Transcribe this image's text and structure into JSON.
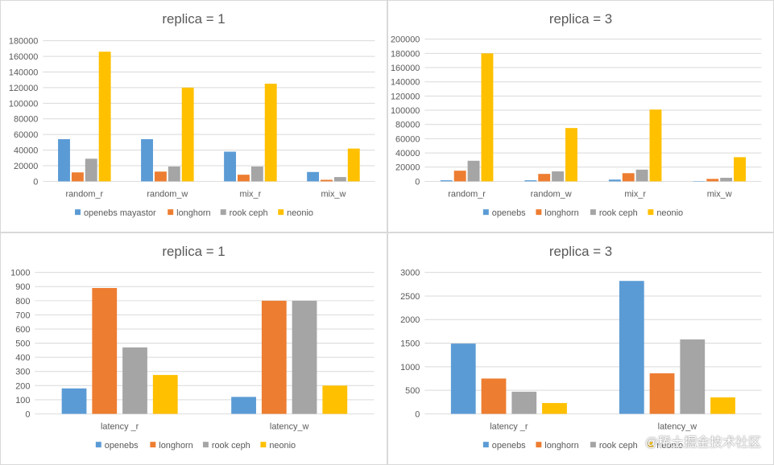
{
  "watermark": "@稀土掘金技术社区",
  "colors": {
    "openebs": "#5b9bd5",
    "longhorn": "#ed7d31",
    "rook_ceph": "#a5a5a5",
    "neonio": "#ffc000"
  },
  "chart_data": [
    {
      "type": "bar",
      "title": "replica = 1",
      "categories": [
        "random_r",
        "random_w",
        "mix_r",
        "mix_w"
      ],
      "ylim": [
        0,
        180000
      ],
      "yticks": [
        0,
        20000,
        40000,
        60000,
        80000,
        100000,
        120000,
        140000,
        160000,
        180000
      ],
      "grid": true,
      "legend_position": "bottom",
      "series": [
        {
          "name": "openebs mayastor",
          "color": "#5b9bd5",
          "values": [
            54000,
            54000,
            38000,
            12000
          ]
        },
        {
          "name": "longhorn",
          "color": "#ed7d31",
          "values": [
            11500,
            12500,
            8500,
            2000
          ]
        },
        {
          "name": "rook ceph",
          "color": "#a5a5a5",
          "values": [
            29000,
            19000,
            19000,
            5500
          ]
        },
        {
          "name": "neonio",
          "color": "#ffc000",
          "values": [
            166000,
            120000,
            125000,
            42000
          ]
        }
      ]
    },
    {
      "type": "bar",
      "title": "replica = 3",
      "categories": [
        "random_r",
        "random_w",
        "mix_r",
        "mix_w"
      ],
      "ylim": [
        0,
        200000
      ],
      "yticks": [
        0,
        20000,
        40000,
        60000,
        80000,
        100000,
        120000,
        140000,
        160000,
        180000,
        200000
      ],
      "grid": true,
      "legend_position": "bottom",
      "series": [
        {
          "name": "openebs",
          "color": "#5b9bd5",
          "values": [
            1500,
            1500,
            2500,
            500
          ]
        },
        {
          "name": "longhorn",
          "color": "#ed7d31",
          "values": [
            15000,
            10500,
            11500,
            3500
          ]
        },
        {
          "name": "rook ceph",
          "color": "#a5a5a5",
          "values": [
            29000,
            14000,
            16500,
            5000
          ]
        },
        {
          "name": "neonio",
          "color": "#ffc000",
          "values": [
            180000,
            75000,
            101000,
            34000
          ]
        }
      ]
    },
    {
      "type": "bar",
      "title": "replica = 1",
      "categories": [
        "latency _r",
        "latency_w"
      ],
      "ylim": [
        0,
        1000
      ],
      "yticks": [
        0,
        100,
        200,
        300,
        400,
        500,
        600,
        700,
        800,
        900,
        1000
      ],
      "grid": true,
      "legend_position": "bottom",
      "series": [
        {
          "name": "openebs",
          "color": "#5b9bd5",
          "values": [
            180,
            120
          ]
        },
        {
          "name": "longhorn",
          "color": "#ed7d31",
          "values": [
            890,
            800
          ]
        },
        {
          "name": "rook ceph",
          "color": "#a5a5a5",
          "values": [
            470,
            800
          ]
        },
        {
          "name": "neonio",
          "color": "#ffc000",
          "values": [
            275,
            200
          ]
        }
      ]
    },
    {
      "type": "bar",
      "title": "replica = 3",
      "categories": [
        "latency _r",
        "latency_w"
      ],
      "ylim": [
        0,
        3000
      ],
      "yticks": [
        0,
        500,
        1000,
        1500,
        2000,
        2500,
        3000
      ],
      "grid": true,
      "legend_position": "bottom",
      "series": [
        {
          "name": "openebs",
          "color": "#5b9bd5",
          "values": [
            1490,
            2820
          ]
        },
        {
          "name": "longhorn",
          "color": "#ed7d31",
          "values": [
            750,
            860
          ]
        },
        {
          "name": "rook ceph",
          "color": "#a5a5a5",
          "values": [
            470,
            1580
          ]
        },
        {
          "name": "neonio",
          "color": "#ffc000",
          "values": [
            230,
            350
          ]
        }
      ]
    }
  ]
}
